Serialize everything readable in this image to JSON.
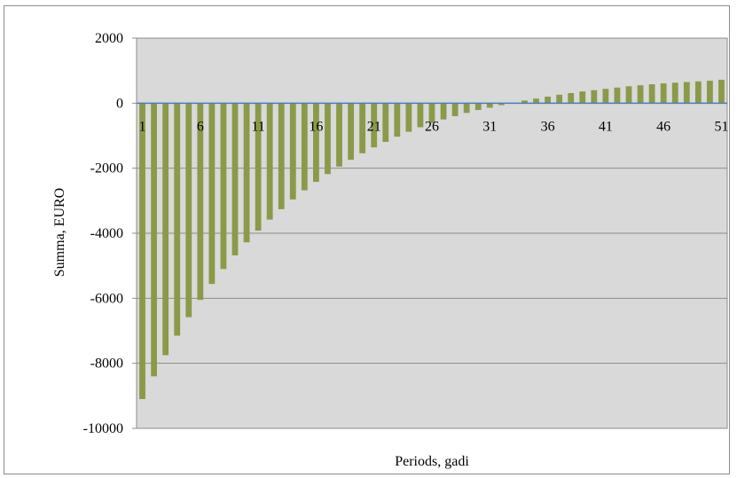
{
  "chart_data": {
    "type": "bar",
    "xlabel": "Periods, gadi",
    "ylabel": "Summa, EURO",
    "ylim": [
      -10000,
      2000
    ],
    "y_ticks": [
      2000,
      0,
      -2000,
      -4000,
      -6000,
      -8000,
      -10000
    ],
    "x_tick_labels": [
      "1",
      "6",
      "11",
      "16",
      "21",
      "26",
      "31",
      "36",
      "41",
      "46",
      "51"
    ],
    "grid": true,
    "legend": "none",
    "bar_color": "#8a9a48",
    "plot_background": "#d9d9d9",
    "categories": [
      "1",
      "2",
      "3",
      "4",
      "5",
      "6",
      "7",
      "8",
      "9",
      "10",
      "11",
      "12",
      "13",
      "14",
      "15",
      "16",
      "17",
      "18",
      "19",
      "20",
      "21",
      "22",
      "23",
      "24",
      "25",
      "26",
      "27",
      "28",
      "29",
      "30",
      "31",
      "32",
      "33",
      "34",
      "35",
      "36",
      "37",
      "38",
      "39",
      "40",
      "41",
      "42",
      "43",
      "44",
      "45",
      "46",
      "47",
      "48",
      "49",
      "50",
      "51"
    ],
    "values": [
      -9100,
      -8400,
      -7750,
      -7150,
      -6580,
      -6050,
      -5560,
      -5100,
      -4680,
      -4280,
      -3920,
      -3580,
      -3260,
      -2960,
      -2680,
      -2420,
      -2180,
      -1950,
      -1740,
      -1540,
      -1360,
      -1190,
      -1030,
      -880,
      -740,
      -610,
      -500,
      -400,
      -300,
      -210,
      -140,
      -60,
      10,
      80,
      140,
      200,
      260,
      310,
      360,
      400,
      440,
      480,
      520,
      550,
      580,
      610,
      630,
      650,
      670,
      690,
      720
    ]
  }
}
